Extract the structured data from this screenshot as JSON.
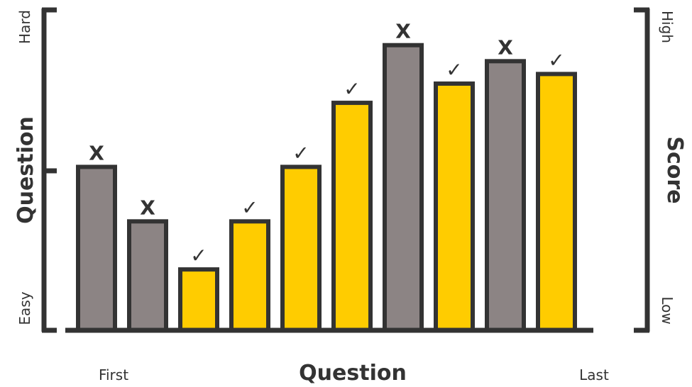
{
  "chart_data": {
    "type": "bar",
    "categories": [
      "",
      "",
      "",
      "",
      "",
      "",
      "",
      "",
      "",
      ""
    ],
    "values": [
      51,
      34,
      19,
      34,
      51,
      71,
      89,
      77,
      84,
      80
    ],
    "ylim": [
      0,
      100
    ],
    "results": [
      "X",
      "X",
      "✓",
      "✓",
      "✓",
      "✓",
      "X",
      "✓",
      "X",
      "✓"
    ],
    "xlabel": "Question",
    "x_start_label": "First",
    "x_end_label": "Last",
    "ylabel_left": "Question",
    "left_low_label": "Easy",
    "left_high_label": "Hard",
    "ylabel_right": "Score",
    "right_low_label": "Low",
    "right_high_label": "High",
    "grid": false,
    "legend": "none",
    "colors": {
      "correct": "#FFCC00",
      "incorrect": "#8C8484",
      "stroke": "#333333",
      "axis": "#333333",
      "text": "#333333"
    }
  }
}
